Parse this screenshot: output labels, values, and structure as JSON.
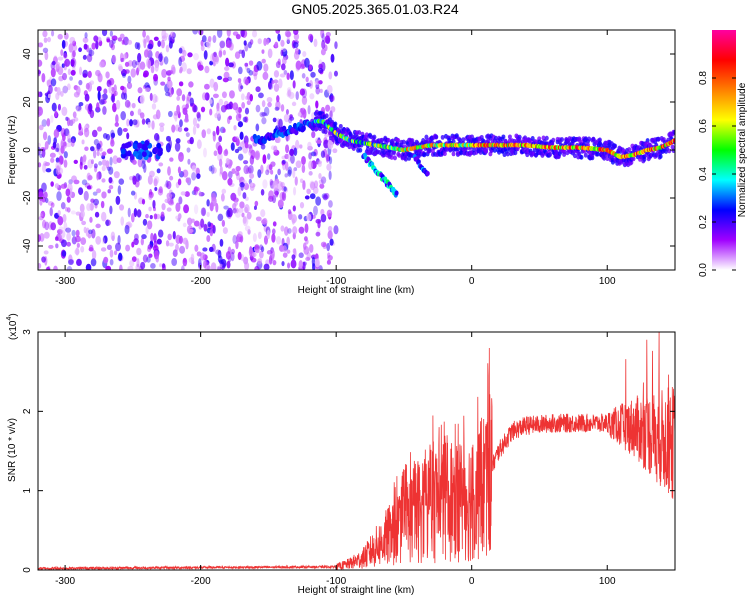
{
  "title": "GN05.2025.365.01.03.R24",
  "chart_data": [
    {
      "type": "heatmap",
      "xlabel": "Height of straight line (km)",
      "ylabel": "Frequency (Hz)",
      "xlim": [
        -320,
        150
      ],
      "ylim": [
        -50,
        50
      ],
      "x_ticks": [
        -300,
        -200,
        -100,
        0,
        100
      ],
      "y_ticks": [
        -40,
        -20,
        0,
        20,
        40
      ],
      "colorbar": {
        "label": "Normalized spectral amplitude",
        "range": [
          0,
          1
        ],
        "ticks": [
          "0.0",
          "0.2",
          "0.4",
          "0.6",
          "0.8"
        ],
        "colors": [
          "#ffffff",
          "#a000ff",
          "#0000ff",
          "#00ffff",
          "#00ff00",
          "#ffff00",
          "#ff8000",
          "#ff0000",
          "#ff00a0"
        ]
      },
      "ridge": {
        "description_free": true,
        "x": [
          -110,
          -100,
          -90,
          -80,
          -70,
          -60,
          -50,
          -40,
          -30,
          -20,
          -10,
          0,
          20,
          40,
          60,
          80,
          100,
          110,
          120,
          130,
          140,
          150
        ],
        "y": [
          12,
          7,
          4,
          3,
          2,
          1,
          0,
          1,
          2,
          2,
          2,
          2,
          2,
          2,
          1,
          1,
          0,
          -3,
          -2,
          0,
          1,
          4
        ]
      },
      "noise_region_x": [
        -320,
        -110
      ]
    },
    {
      "type": "line",
      "xlabel": "Height of straight line (km)",
      "ylabel": "SNR (10 * v/v)",
      "y_multiplier": "(x10^4)",
      "y_multiplier_base": "(x10",
      "y_multiplier_exp": "4",
      "xlim": [
        -320,
        150
      ],
      "ylim": [
        0,
        3
      ],
      "x_ticks": [
        -300,
        -200,
        -100,
        0,
        100
      ],
      "y_ticks": [
        0,
        1,
        2,
        3
      ],
      "color": "#ee3333",
      "series": [
        {
          "x": [
            -320,
            -100,
            -90,
            -80,
            -70,
            -60,
            -50,
            -40,
            -30,
            -20,
            -10,
            0,
            10,
            20,
            30,
            40,
            60,
            80,
            100,
            120,
            140,
            150
          ],
          "y": [
            0.02,
            0.04,
            0.08,
            0.15,
            0.3,
            0.45,
            0.6,
            0.75,
            0.85,
            0.9,
            0.9,
            0.9,
            1.1,
            1.5,
            1.75,
            1.82,
            1.85,
            1.85,
            1.85,
            1.8,
            1.65,
            1.6
          ]
        }
      ]
    }
  ]
}
